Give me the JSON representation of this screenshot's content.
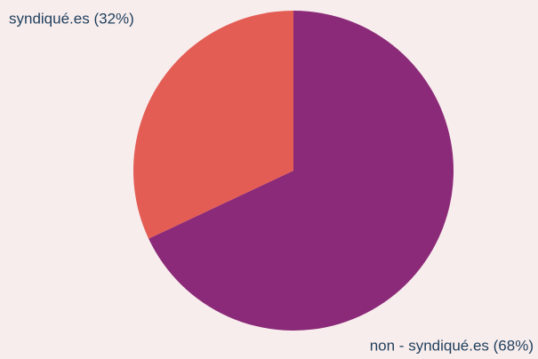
{
  "chart_data": {
    "type": "pie",
    "categories": [
      "non - syndiqué.es (68%)",
      "syndiqué.es (32%)"
    ],
    "values": [
      68,
      32
    ],
    "colors": [
      "#8b2a78",
      "#e35d55"
    ]
  }
}
